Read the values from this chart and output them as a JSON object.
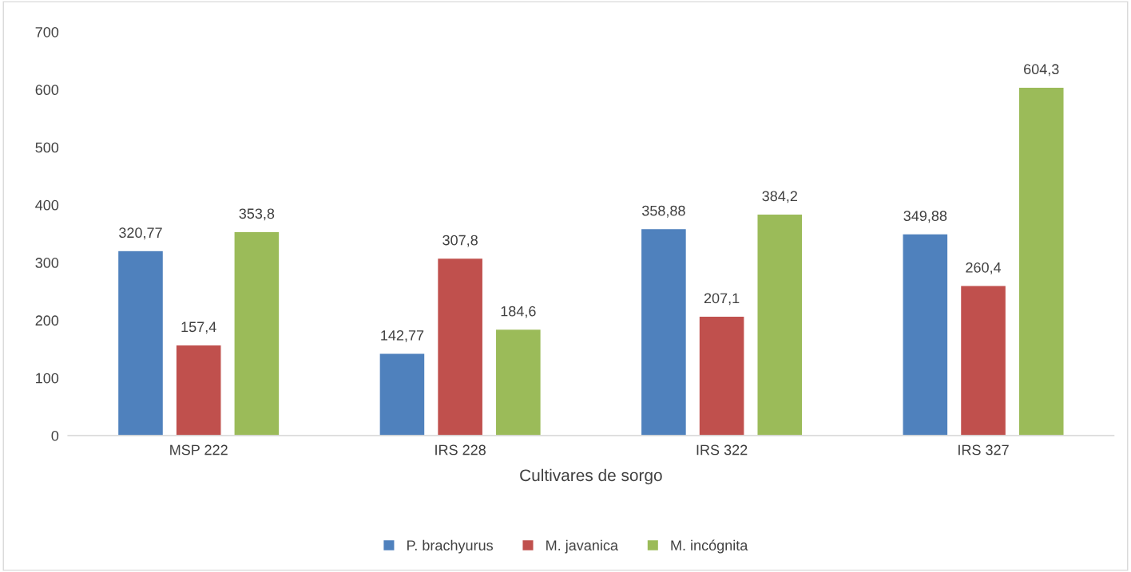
{
  "chart_data": {
    "type": "bar",
    "xlabel": "Cultivares de sorgo",
    "categories": [
      "MSP 222",
      "IRS 228",
      "IRS 322",
      "IRS 327"
    ],
    "series": [
      {
        "name": "P. brachyurus",
        "color": "#4f81bd",
        "values": [
          320.77,
          142.77,
          358.88,
          349.88
        ],
        "value_labels": [
          "320,77",
          "142,77",
          "358,88",
          "349,88"
        ]
      },
      {
        "name": "M. javanica",
        "color": "#c0504d",
        "values": [
          157.4,
          307.8,
          207.1,
          260.4
        ],
        "value_labels": [
          "157,4",
          "307,8",
          "207,1",
          "260,4"
        ]
      },
      {
        "name": "M. incógnita",
        "color": "#9bbb59",
        "values": [
          353.8,
          184.6,
          384.2,
          604.3
        ],
        "value_labels": [
          "353,8",
          "184,6",
          "384,2",
          "604,3"
        ]
      }
    ],
    "ylim": [
      0,
      700
    ],
    "yticks": [
      0,
      100,
      200,
      300,
      400,
      500,
      600,
      700
    ],
    "grid": false,
    "legend": "bottom"
  }
}
